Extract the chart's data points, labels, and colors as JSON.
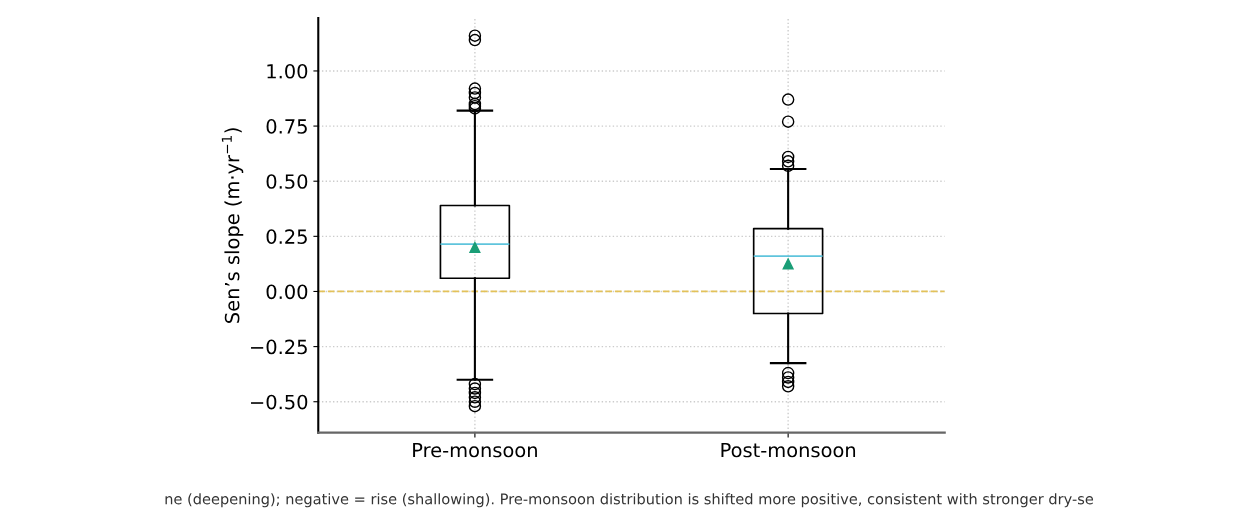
{
  "chart_data": {
    "type": "box",
    "ylabel": "Sen’s slope (m·yr$^{−1}$)",
    "categories": [
      "Pre-monsoon",
      "Post-monsoon"
    ],
    "boxes": [
      {
        "low": -0.4,
        "q1": 0.06,
        "median": 0.215,
        "q3": 0.39,
        "high": 0.82,
        "mean": 0.2,
        "outliers": [
          1.16,
          1.14,
          0.92,
          0.9,
          0.88,
          0.85,
          0.84,
          0.83,
          -0.42,
          -0.44,
          -0.46,
          -0.48,
          -0.5,
          -0.52
        ]
      },
      {
        "low": -0.325,
        "q1": -0.1,
        "median": 0.16,
        "q3": 0.285,
        "high": 0.555,
        "mean": 0.125,
        "outliers": [
          0.87,
          0.77,
          0.61,
          0.59,
          0.57,
          -0.37,
          -0.39,
          -0.41,
          -0.43
        ]
      }
    ],
    "ylim": [
      -0.64,
      1.24
    ],
    "yticks": [
      {
        "value": -0.5,
        "label": "−0.50"
      },
      {
        "value": -0.25,
        "label": "−0.25"
      },
      {
        "value": 0,
        "label": "0.00"
      },
      {
        "value": 0.25,
        "label": "0.25"
      },
      {
        "value": 0.5,
        "label": "0.50"
      },
      {
        "value": 0.75,
        "label": "0.75"
      },
      {
        "value": 1.0,
        "label": "1.00"
      }
    ],
    "ref_lines": [
      {
        "axis": "y",
        "value": 0,
        "color": "#e3c25a",
        "line_style": "dashed"
      }
    ],
    "grid": true,
    "annotations": [
      "ne (deepening); negative = rise (shallowing). Pre-monsoon distribution is shifted more positive, consistent with stronger dry-se"
    ]
  }
}
